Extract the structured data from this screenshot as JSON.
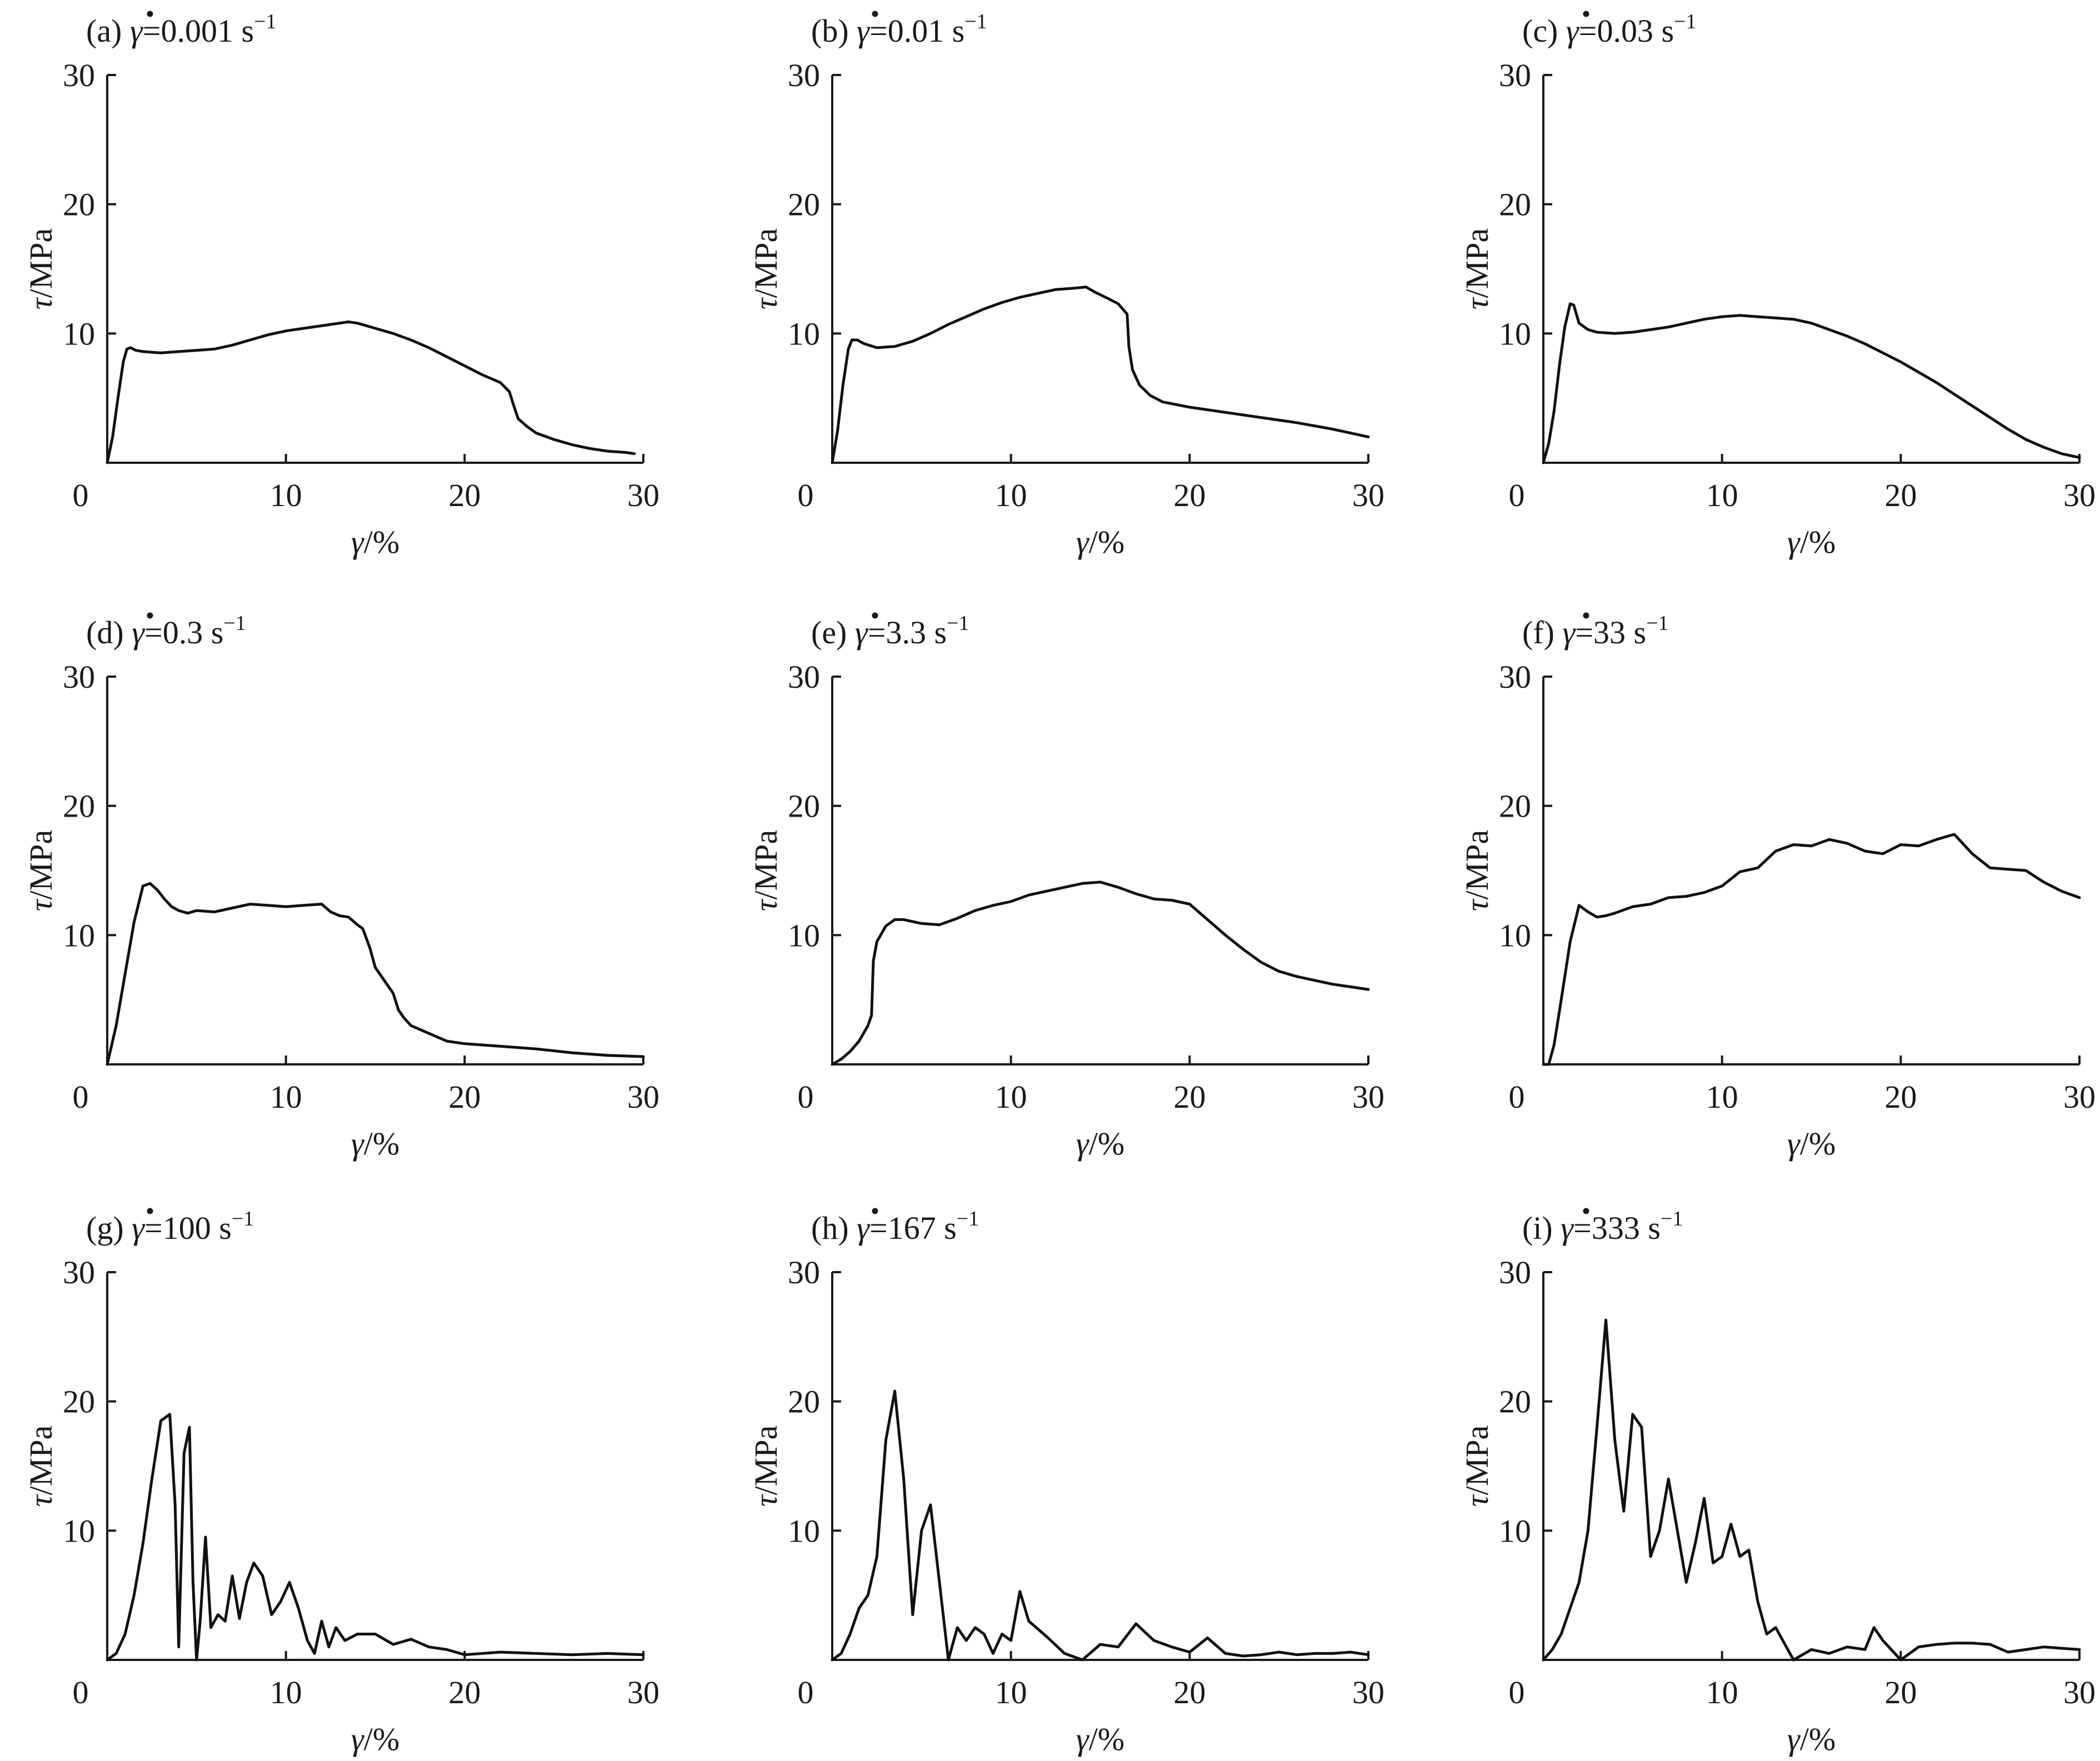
{
  "figure": {
    "panels": [
      {
        "id": "a",
        "label": "(a)",
        "rate_symbol": "γ",
        "rate_value": "=0.001 s",
        "rate_exp": "−1"
      },
      {
        "id": "b",
        "label": "(b)",
        "rate_symbol": "γ",
        "rate_value": "=0.01 s",
        "rate_exp": "−1"
      },
      {
        "id": "c",
        "label": "(c)",
        "rate_symbol": "γ",
        "rate_value": "=0.03 s",
        "rate_exp": "−1"
      },
      {
        "id": "d",
        "label": "(d)",
        "rate_symbol": "γ",
        "rate_value": "=0.3 s",
        "rate_exp": "−1"
      },
      {
        "id": "e",
        "label": "(e)",
        "rate_symbol": "γ",
        "rate_value": "=3.3 s",
        "rate_exp": "−1"
      },
      {
        "id": "f",
        "label": "(f)",
        "rate_symbol": "γ",
        "rate_value": "=33 s",
        "rate_exp": "−1"
      },
      {
        "id": "g",
        "label": "(g)",
        "rate_symbol": "γ",
        "rate_value": "=100 s",
        "rate_exp": "−1"
      },
      {
        "id": "h",
        "label": "(h)",
        "rate_symbol": "γ",
        "rate_value": "=167 s",
        "rate_exp": "−1"
      },
      {
        "id": "i",
        "label": "(i)",
        "rate_symbol": "γ",
        "rate_value": "=333 s",
        "rate_exp": "−1"
      }
    ]
  },
  "chart_data": [
    {
      "type": "line",
      "title": "(a) γ̇=0.001 s⁻¹",
      "xlabel": "γ/%",
      "ylabel": "τ/MPa",
      "xlim": [
        0,
        30
      ],
      "ylim": [
        0,
        30
      ],
      "x_ticks": [
        "0",
        "10",
        "20",
        "30"
      ],
      "y_ticks": [
        "10",
        "20",
        "30"
      ],
      "x": [
        0,
        0.3,
        0.6,
        0.9,
        1.1,
        1.3,
        1.6,
        2,
        3,
        4,
        5,
        6,
        7,
        8,
        9,
        10,
        11,
        12,
        13,
        13.5,
        14,
        15,
        16,
        17,
        18,
        19,
        20,
        21,
        22,
        22.5,
        22.8,
        23,
        23.5,
        24,
        25,
        26,
        27,
        28,
        29,
        29.5
      ],
      "y": [
        0,
        2,
        5,
        7.8,
        8.8,
        8.9,
        8.7,
        8.6,
        8.5,
        8.6,
        8.7,
        8.8,
        9.1,
        9.5,
        9.9,
        10.2,
        10.4,
        10.6,
        10.8,
        10.9,
        10.8,
        10.4,
        10,
        9.5,
        8.9,
        8.2,
        7.5,
        6.8,
        6.2,
        5.5,
        4.2,
        3.4,
        2.8,
        2.3,
        1.8,
        1.4,
        1.1,
        0.9,
        0.8,
        0.7
      ]
    },
    {
      "type": "line",
      "title": "(b) γ̇=0.01 s⁻¹",
      "xlabel": "γ/%",
      "ylabel": "τ/MPa",
      "xlim": [
        0,
        30
      ],
      "ylim": [
        0,
        30
      ],
      "x_ticks": [
        "0",
        "10",
        "20",
        "30"
      ],
      "y_ticks": [
        "10",
        "20",
        "30"
      ],
      "x": [
        0,
        0.3,
        0.6,
        0.9,
        1.1,
        1.4,
        1.8,
        2.5,
        3.5,
        4.5,
        5.5,
        6.5,
        7.5,
        8.5,
        9.5,
        10.5,
        11.5,
        12.5,
        13.5,
        14.2,
        14.7,
        15.3,
        16,
        16.5,
        16.6,
        16.8,
        17.2,
        17.8,
        18.5,
        20,
        22,
        24,
        26,
        28,
        30
      ],
      "y": [
        0,
        2.5,
        6,
        8.8,
        9.5,
        9.5,
        9.2,
        8.9,
        9,
        9.4,
        10,
        10.7,
        11.3,
        11.9,
        12.4,
        12.8,
        13.1,
        13.4,
        13.5,
        13.6,
        13.2,
        12.8,
        12.3,
        11.5,
        9,
        7.2,
        6,
        5.2,
        4.7,
        4.3,
        3.9,
        3.5,
        3.1,
        2.6,
        2
      ]
    },
    {
      "type": "line",
      "title": "(c) γ̇=0.03 s⁻¹",
      "xlabel": "γ/%",
      "ylabel": "τ/MPa",
      "xlim": [
        0,
        30
      ],
      "ylim": [
        0,
        30
      ],
      "x_ticks": [
        "0",
        "10",
        "20",
        "30"
      ],
      "y_ticks": [
        "10",
        "20",
        "30"
      ],
      "x": [
        0,
        0.3,
        0.6,
        0.9,
        1.2,
        1.5,
        1.7,
        2,
        2.5,
        3,
        4,
        5,
        6,
        7,
        8,
        9,
        10,
        11,
        12,
        13,
        14,
        15,
        16,
        17,
        18,
        19,
        20,
        21,
        22,
        23,
        24,
        25,
        26,
        27,
        28,
        29,
        30
      ],
      "y": [
        0,
        1.5,
        4,
        7.5,
        10.5,
        12.3,
        12.2,
        10.8,
        10.3,
        10.1,
        10,
        10.1,
        10.3,
        10.5,
        10.8,
        11.1,
        11.3,
        11.4,
        11.3,
        11.2,
        11.1,
        10.8,
        10.3,
        9.8,
        9.2,
        8.5,
        7.8,
        7,
        6.2,
        5.3,
        4.4,
        3.5,
        2.6,
        1.8,
        1.2,
        0.7,
        0.4
      ]
    },
    {
      "type": "line",
      "title": "(d) γ̇=0.3 s⁻¹",
      "xlabel": "γ/%",
      "ylabel": "τ/MPa",
      "xlim": [
        0,
        30
      ],
      "ylim": [
        0,
        30
      ],
      "x_ticks": [
        "0",
        "10",
        "20",
        "30"
      ],
      "y_ticks": [
        "10",
        "20",
        "30"
      ],
      "x": [
        0,
        0.5,
        1,
        1.5,
        2,
        2.4,
        2.8,
        3.2,
        3.6,
        4,
        4.5,
        5,
        6,
        7,
        8,
        9,
        10,
        11,
        12,
        12.5,
        13,
        13.5,
        14,
        14.3,
        14.7,
        15,
        15.5,
        16,
        16.3,
        16.6,
        17,
        18,
        19,
        20,
        22,
        24,
        26,
        28,
        30
      ],
      "y": [
        0,
        3,
        7,
        11,
        13.8,
        14,
        13.5,
        12.8,
        12.2,
        11.9,
        11.7,
        11.9,
        11.8,
        12.1,
        12.4,
        12.3,
        12.2,
        12.3,
        12.4,
        11.8,
        11.5,
        11.4,
        10.8,
        10.5,
        9,
        7.5,
        6.5,
        5.5,
        4.2,
        3.6,
        3,
        2.4,
        1.8,
        1.6,
        1.4,
        1.2,
        0.9,
        0.7,
        0.6
      ]
    },
    {
      "type": "line",
      "title": "(e) γ̇=3.3 s⁻¹",
      "xlabel": "γ/%",
      "ylabel": "τ/MPa",
      "xlim": [
        0,
        30
      ],
      "ylim": [
        0,
        30
      ],
      "x_ticks": [
        "0",
        "10",
        "20",
        "30"
      ],
      "y_ticks": [
        "10",
        "20",
        "30"
      ],
      "x": [
        0,
        0.5,
        1,
        1.5,
        2,
        2.2,
        2.3,
        2.5,
        3,
        3.5,
        4,
        5,
        6,
        7,
        8,
        9,
        10,
        11,
        12,
        13,
        14,
        15,
        16,
        17,
        18,
        19,
        20,
        21,
        22,
        23,
        24,
        25,
        26,
        27,
        28,
        29,
        30
      ],
      "y": [
        0,
        0.4,
        1,
        1.8,
        3,
        3.8,
        8,
        9.5,
        10.7,
        11.2,
        11.2,
        10.9,
        10.8,
        11.3,
        11.9,
        12.3,
        12.6,
        13.1,
        13.4,
        13.7,
        14,
        14.1,
        13.7,
        13.2,
        12.8,
        12.7,
        12.4,
        11.2,
        10,
        8.9,
        7.9,
        7.2,
        6.8,
        6.5,
        6.2,
        6,
        5.8
      ]
    },
    {
      "type": "line",
      "title": "(f) γ̇=33 s⁻¹",
      "xlabel": "γ/%",
      "ylabel": "τ/MPa",
      "xlim": [
        0,
        30
      ],
      "ylim": [
        0,
        30
      ],
      "x_ticks": [
        "0",
        "10",
        "20",
        "30"
      ],
      "y_ticks": [
        "10",
        "20",
        "30"
      ],
      "x": [
        0,
        0.3,
        0.6,
        1,
        1.5,
        2,
        2.5,
        3,
        3.5,
        4,
        5,
        6,
        7,
        8,
        9,
        10,
        11,
        12,
        13,
        14,
        15,
        16,
        17,
        18,
        19,
        20,
        21,
        22,
        23,
        24,
        25,
        26,
        27,
        28,
        29,
        30
      ],
      "y": [
        0,
        0,
        1.5,
        5,
        9.5,
        12.3,
        11.8,
        11.4,
        11.5,
        11.7,
        12.2,
        12.4,
        12.9,
        13,
        13.3,
        13.8,
        14.9,
        15.2,
        16.5,
        17,
        16.9,
        17.4,
        17.1,
        16.5,
        16.3,
        17,
        16.9,
        17.4,
        17.8,
        16.3,
        15.2,
        15.1,
        15,
        14.1,
        13.4,
        12.9
      ]
    },
    {
      "type": "line",
      "title": "(g) γ̇=100 s⁻¹",
      "xlabel": "γ/%",
      "ylabel": "τ/MPa",
      "xlim": [
        0,
        30
      ],
      "ylim": [
        0,
        30
      ],
      "x_ticks": [
        "0",
        "10",
        "20",
        "30"
      ],
      "y_ticks": [
        "10",
        "20",
        "30"
      ],
      "x": [
        0,
        0.5,
        1,
        1.5,
        2,
        2.5,
        3,
        3.5,
        3.8,
        4,
        4.3,
        4.6,
        4.8,
        5,
        5.2,
        5.5,
        5.8,
        6.2,
        6.6,
        7,
        7.4,
        7.8,
        8.2,
        8.7,
        9.2,
        9.7,
        10.2,
        10.7,
        11.2,
        11.6,
        12,
        12.4,
        12.8,
        13.3,
        14,
        15,
        16,
        17,
        18,
        19,
        20,
        22,
        24,
        26,
        28,
        30
      ],
      "y": [
        0,
        0.5,
        2,
        5,
        9,
        14,
        18.5,
        19,
        12,
        1,
        16,
        18,
        6,
        0,
        3,
        9.5,
        2.5,
        3.5,
        3,
        6.5,
        3.2,
        6,
        7.5,
        6.5,
        3.5,
        4.5,
        6,
        4,
        1.5,
        0.5,
        3,
        1,
        2.5,
        1.5,
        2,
        2,
        1.2,
        1.6,
        1,
        0.8,
        0.4,
        0.6,
        0.5,
        0.4,
        0.5,
        0.4
      ]
    },
    {
      "type": "line",
      "title": "(h) γ̇=167 s⁻¹",
      "xlabel": "γ/%",
      "ylabel": "τ/MPa",
      "xlim": [
        0,
        30
      ],
      "ylim": [
        0,
        30
      ],
      "x_ticks": [
        "0",
        "10",
        "20",
        "30"
      ],
      "y_ticks": [
        "10",
        "20",
        "30"
      ],
      "x": [
        0,
        0.5,
        1,
        1.5,
        2,
        2.5,
        3,
        3.5,
        4,
        4.5,
        5,
        5.5,
        6,
        6.5,
        7,
        7.5,
        8,
        8.5,
        9,
        9.5,
        10,
        10.5,
        11,
        12,
        13,
        14,
        15,
        16,
        17,
        18,
        19,
        20,
        21,
        22,
        23,
        24,
        25,
        26,
        27,
        28,
        29,
        30
      ],
      "y": [
        0,
        0.5,
        2,
        4,
        5,
        8,
        17,
        20.8,
        14,
        3.5,
        10,
        12,
        6,
        0,
        2.5,
        1.5,
        2.5,
        2,
        0.5,
        2,
        1.5,
        5.3,
        3,
        1.8,
        0.5,
        0,
        1.2,
        1,
        2.8,
        1.5,
        1,
        0.6,
        1.7,
        0.5,
        0.3,
        0.4,
        0.6,
        0.4,
        0.5,
        0.5,
        0.6,
        0.4
      ]
    },
    {
      "type": "line",
      "title": "(i) γ̇=333 s⁻¹",
      "xlabel": "γ/%",
      "ylabel": "τ/MPa",
      "xlim": [
        0,
        30
      ],
      "ylim": [
        0,
        30
      ],
      "x_ticks": [
        "0",
        "10",
        "20",
        "30"
      ],
      "y_ticks": [
        "10",
        "20",
        "30"
      ],
      "x": [
        0,
        0.5,
        1,
        1.5,
        2,
        2.5,
        3,
        3.5,
        4,
        4.5,
        5,
        5.5,
        6,
        6.5,
        7,
        7.5,
        8,
        8.5,
        9,
        9.5,
        10,
        10.5,
        11,
        11.5,
        12,
        12.5,
        13,
        14,
        15,
        16,
        17,
        18,
        18.5,
        19,
        20,
        21,
        22,
        23,
        24,
        25,
        26,
        27,
        28,
        29,
        30
      ],
      "y": [
        0,
        0.8,
        2,
        4,
        6,
        10,
        18,
        26.3,
        17,
        11.5,
        19,
        18,
        8,
        10,
        14,
        10,
        6,
        9,
        12.5,
        7.5,
        8,
        10.5,
        8,
        8.5,
        4.5,
        2,
        2.5,
        0,
        0.8,
        0.5,
        1,
        0.8,
        2.5,
        1.5,
        0,
        1,
        1.2,
        1.3,
        1.3,
        1.2,
        0.6,
        0.8,
        1,
        0.9,
        0.8
      ]
    }
  ]
}
